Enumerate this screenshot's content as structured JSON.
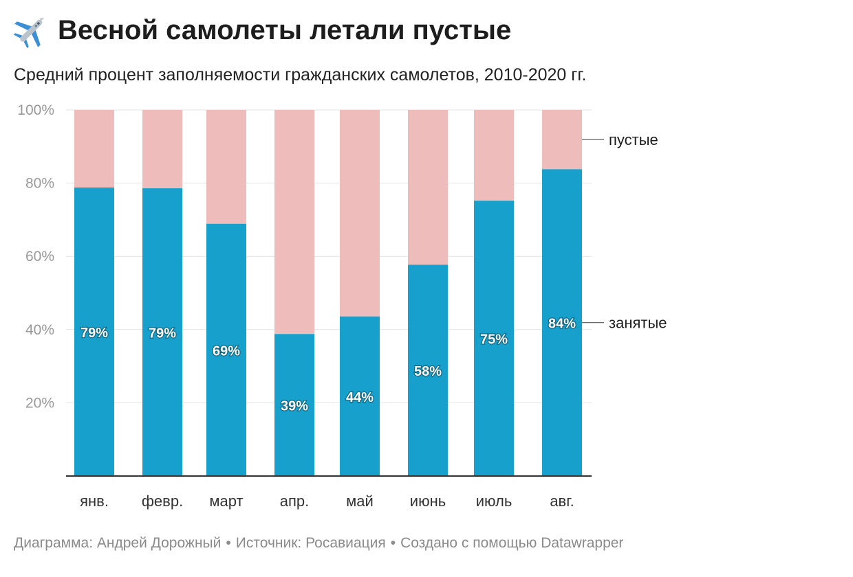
{
  "header": {
    "title": "Весной самолеты летали пустые",
    "subtitle": "Средний процент заполняемости гражданских самолетов, 2010-2020 гг.",
    "icon": "airplane-icon"
  },
  "footer": {
    "chart_by": "Диаграмма: Андрей Дорожный",
    "source": "Источник: Росавиация",
    "made_with": "Создано с помощью Datawrapper",
    "separator": "•"
  },
  "colors": {
    "occupied": "#18a0cc",
    "empty": "#efbcbc",
    "grid": "#e2e2e2",
    "axis": "#333333",
    "tick": "#999999"
  },
  "chart_data": {
    "type": "bar",
    "stacked": true,
    "title": "Весной самолеты летали пустые",
    "subtitle": "Средний процент заполняемости гражданских самолетов, 2010-2020 гг.",
    "categories": [
      "янв.",
      "февр.",
      "март",
      "апр.",
      "май",
      "июнь",
      "июль",
      "авг."
    ],
    "series": [
      {
        "name": "занятые",
        "values": [
          78.8,
          78.6,
          68.9,
          38.8,
          43.6,
          57.7,
          75.2,
          83.8
        ],
        "labels": [
          "79%",
          "79%",
          "69%",
          "39%",
          "44%",
          "58%",
          "75%",
          "84%"
        ]
      },
      {
        "name": "пустые",
        "values": [
          21.2,
          21.4,
          31.1,
          61.2,
          56.4,
          42.3,
          24.8,
          16.2
        ]
      }
    ],
    "ylim": [
      0,
      100
    ],
    "yticks": [
      20,
      40,
      60,
      80,
      100
    ],
    "ytick_labels": [
      "20%",
      "40%",
      "60%",
      "80%",
      "100%"
    ],
    "legend_labels": {
      "empty": "пустые",
      "occupied": "занятые"
    },
    "legend_position": "right",
    "xlabel": "",
    "ylabel": "",
    "grid": true
  }
}
